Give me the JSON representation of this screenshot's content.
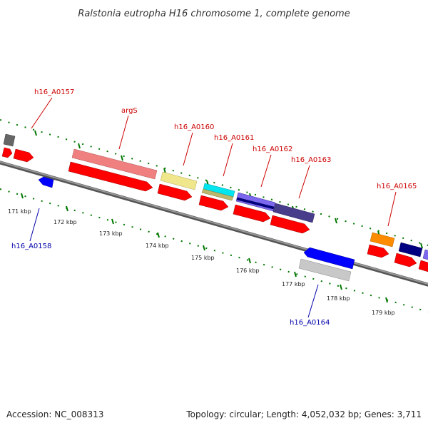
{
  "title": "Ralstonia eutropha H16 chromosome 1, complete genome",
  "footer": {
    "accession": "Accession: NC_008313",
    "topology": "Topology: circular; Length: 4,052,032 bp; Genes: 3,711"
  },
  "colors": {
    "label_forward": "#cc0000",
    "label_reverse": "#0000aa",
    "backbone": "#808080",
    "tick": "#007700",
    "cds": "#ff0000"
  },
  "tick_labels": [
    "171 kbp",
    "172 kbp",
    "173 kbp",
    "174 kbp",
    "175 kbp",
    "176 kbp",
    "177 kbp",
    "178 kbp",
    "179 kbp"
  ],
  "gene_labels": [
    {
      "text": "h16_A0157",
      "strand": "forward"
    },
    {
      "text": "argS",
      "strand": "forward"
    },
    {
      "text": "h16_A0160",
      "strand": "forward"
    },
    {
      "text": "h16_A0161",
      "strand": "forward"
    },
    {
      "text": "h16_A0162",
      "strand": "forward"
    },
    {
      "text": "h16_A0163",
      "strand": "forward"
    },
    {
      "text": "h16_A0165",
      "strand": "forward"
    },
    {
      "text": "h16_A0158",
      "strand": "reverse"
    },
    {
      "text": "h16_A0164",
      "strand": "reverse"
    }
  ]
}
